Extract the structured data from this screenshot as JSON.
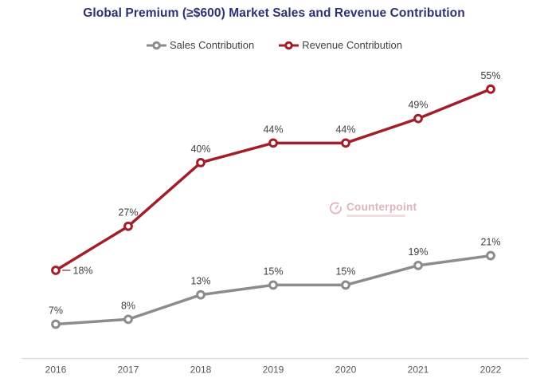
{
  "title": {
    "text": "Global Premium (≥$600) Market Sales and Revenue Contribution",
    "color": "#2e3175"
  },
  "chart_data": {
    "type": "line",
    "title": "Global Premium (≥$600) Market Sales and Revenue Contribution",
    "categories": [
      "2016",
      "2017",
      "2018",
      "2019",
      "2020",
      "2021",
      "2022"
    ],
    "series": [
      {
        "name": "Sales Contribution",
        "color": "#8c8c8c",
        "values": [
          7,
          8,
          13,
          15,
          15,
          19,
          21
        ],
        "label_overrides": {}
      },
      {
        "name": "Revenue Contribution",
        "color": "#a21e28",
        "values": [
          18,
          27,
          40,
          44,
          44,
          49,
          55
        ],
        "label_overrides": {
          "0": "right"
        }
      }
    ],
    "value_suffix": "%",
    "data_labels": true,
    "xlabel": "",
    "ylabel": "",
    "ylim": [
      0,
      61
    ],
    "grid": false,
    "legend_position": "top",
    "axis_line_color": "#d9d9d9",
    "data_label_color": "#3f3f3f",
    "tick_label_color": "#595959"
  },
  "watermark": {
    "text": "Counterpoint",
    "color": "#d9a8ae"
  }
}
